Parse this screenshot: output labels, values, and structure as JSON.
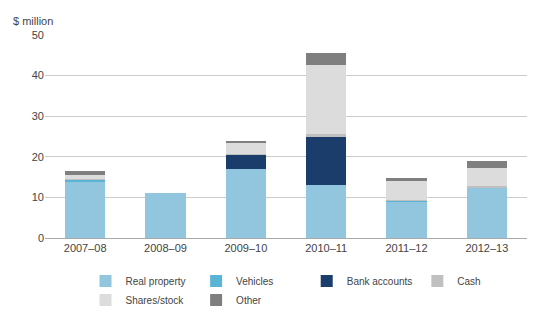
{
  "chart_data": {
    "type": "bar",
    "stacked": true,
    "ylabel": "$ million",
    "categories": [
      "2007–08",
      "2008–09",
      "2009–10",
      "2010–11",
      "2011–12",
      "2012–13"
    ],
    "series": [
      {
        "name": "Real property",
        "color": "#92c5de",
        "values": [
          14.0,
          11.0,
          17.0,
          13.0,
          9.0,
          12.5
        ]
      },
      {
        "name": "Vehicles",
        "color": "#5ab4d6",
        "values": [
          0.3,
          0.0,
          0.0,
          0.0,
          0.2,
          0.0
        ]
      },
      {
        "name": "Bank accounts",
        "color": "#1a3d6b",
        "values": [
          0.0,
          0.0,
          3.5,
          12.0,
          0.0,
          0.0
        ]
      },
      {
        "name": "Cash",
        "color": "#c0c0c0",
        "values": [
          0.3,
          0.0,
          0.3,
          0.5,
          0.2,
          0.2
        ]
      },
      {
        "name": "Shares/stock",
        "color": "#dcdcdc",
        "values": [
          0.8,
          0.0,
          2.5,
          17.0,
          4.6,
          4.5
        ]
      },
      {
        "name": "Other",
        "color": "#7f7f7f",
        "values": [
          1.0,
          0.0,
          0.5,
          3.0,
          0.8,
          1.8
        ]
      }
    ],
    "ylim": [
      0,
      50
    ],
    "yticks": [
      0,
      10,
      20,
      30,
      40,
      50
    ],
    "grid": true,
    "legend": "bottom"
  }
}
